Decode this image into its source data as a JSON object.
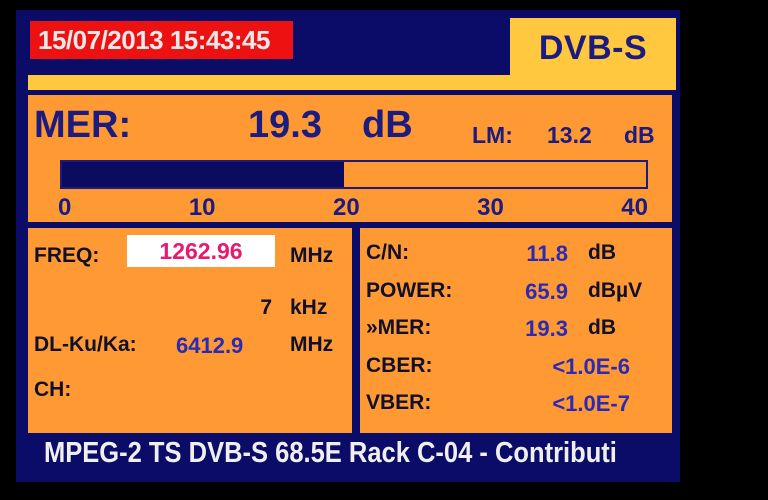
{
  "colors": {
    "background": "#000000",
    "frame_navy": "#0b0b68",
    "panel_orange": "#ff9933",
    "accent_yellow": "#ffc83e",
    "date_red": "#ee1111",
    "freq_magenta": "#e8196e",
    "value_blue": "#2a2ab4",
    "label_ink": "#10102a",
    "navy_text": "#1b1b80",
    "bar_fill_navy": "#0b0b60",
    "status_white": "#efefef"
  },
  "header": {
    "datetime": "15/07/2013 15:43:45",
    "mode": "DVB-S"
  },
  "mer": {
    "label": "MER:",
    "value": "19.3",
    "unit": "dB",
    "lm_label": "LM:",
    "lm_value": "13.2",
    "lm_unit": "dB",
    "scale_min": 0,
    "scale_max": 40,
    "scale_ticks": [
      "0",
      "10",
      "20",
      "30",
      "40"
    ]
  },
  "tuning": {
    "freq_label": "FREQ:",
    "freq_value": "1262.96",
    "freq_unit": "MHz",
    "offset_value": "7",
    "offset_unit": "kHz",
    "downlink_label": "DL-Ku/Ka:",
    "downlink_value": "6412.9",
    "downlink_unit": "MHz",
    "channel_label": "CH:",
    "channel_value": ""
  },
  "measurements": {
    "rows": [
      {
        "label": "C/N:",
        "value": "11.8",
        "unit": "dB"
      },
      {
        "label": "POWER:",
        "value": "65.9",
        "unit": "dBµV"
      },
      {
        "label": "»MER:",
        "value": "19.3",
        "unit": "dB"
      },
      {
        "label": "CBER:",
        "value": "<1.0E-6",
        "unit": ""
      },
      {
        "label": "VBER:",
        "value": "<1.0E-7",
        "unit": ""
      }
    ]
  },
  "status_bar": {
    "text": "MPEG-2 TS DVB-S 68.5E Rack C-04 - Contributi"
  }
}
